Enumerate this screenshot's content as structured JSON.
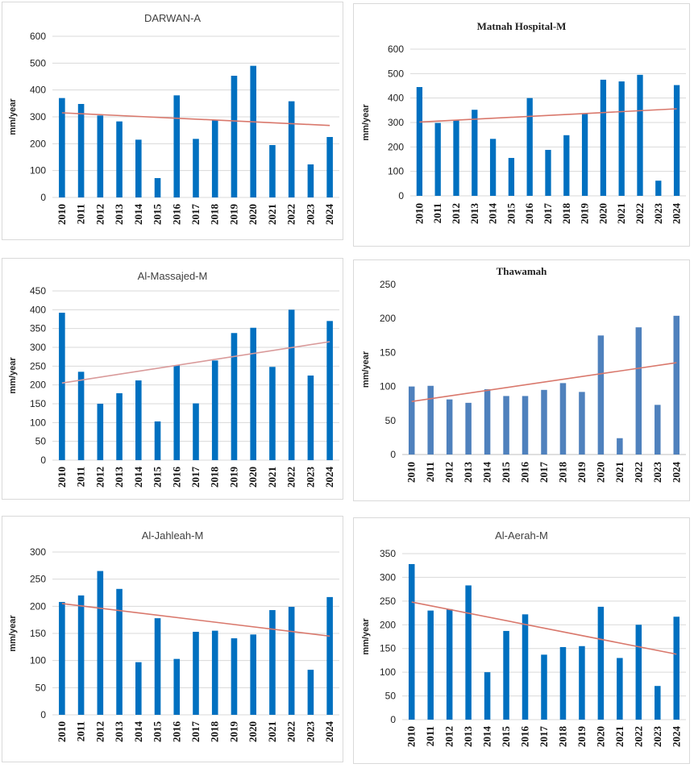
{
  "chart_data": [
    {
      "type": "bar",
      "title": "DARWAN-A",
      "ylabel": "mm/year",
      "categories": [
        "2010",
        "2011",
        "2012",
        "2013",
        "2014",
        "2015",
        "2016",
        "2017",
        "2018",
        "2019",
        "2020",
        "2021",
        "2022",
        "2023",
        "2024"
      ],
      "values": [
        370,
        348,
        305,
        283,
        215,
        72,
        380,
        218,
        288,
        453,
        490,
        195,
        358,
        123,
        225
      ],
      "ylim": [
        0,
        600
      ],
      "yticks": [
        "0",
        "100",
        "200",
        "300",
        "400",
        "500",
        "600"
      ],
      "trendline": [
        315,
        268
      ],
      "grid": true,
      "bar_color": "#0070c0",
      "trend_color": "#d9786c"
    },
    {
      "type": "bar",
      "title": "Matnah Hospital-M",
      "ylabel": "mm/year",
      "categories": [
        "2010",
        "2011",
        "2012",
        "2013",
        "2014",
        "2015",
        "2016",
        "2017",
        "2018",
        "2019",
        "2020",
        "2021",
        "2022",
        "2023",
        "2024"
      ],
      "values": [
        445,
        298,
        310,
        352,
        233,
        155,
        400,
        188,
        248,
        338,
        475,
        468,
        495,
        62,
        453
      ],
      "ylim": [
        0,
        600
      ],
      "yticks": [
        "0",
        "100",
        "200",
        "300",
        "400",
        "500",
        "600"
      ],
      "trendline": [
        302,
        356
      ],
      "grid": true,
      "bar_color": "#0070c0",
      "trend_color": "#d9786c"
    },
    {
      "type": "bar",
      "title": "Al-Massajed-M",
      "ylabel": "mm/year",
      "categories": [
        "2010",
        "2011",
        "2012",
        "2013",
        "2014",
        "2015",
        "2016",
        "2017",
        "2018",
        "2019",
        "2020",
        "2021",
        "2022",
        "2023",
        "2024"
      ],
      "values": [
        392,
        235,
        150,
        178,
        212,
        103,
        252,
        151,
        265,
        338,
        352,
        248,
        400,
        225,
        370
      ],
      "ylim": [
        0,
        450
      ],
      "yticks": [
        "0",
        "50",
        "100",
        "150",
        "200",
        "250",
        "300",
        "350",
        "400",
        "450"
      ],
      "trendline": [
        205,
        315
      ],
      "grid": true,
      "bar_color": "#0070c0",
      "trend_color": "#d99a9a"
    },
    {
      "type": "bar",
      "title": "Thawamah",
      "ylabel": "mm/year",
      "categories": [
        "2010",
        "2011",
        "2012",
        "2013",
        "2014",
        "2015",
        "2016",
        "2017",
        "2018",
        "2019",
        "2020",
        "2021",
        "2022",
        "2023",
        "2024"
      ],
      "values": [
        100,
        101,
        81,
        76,
        96,
        86,
        86,
        95,
        105,
        92,
        175,
        24,
        187,
        73,
        204
      ],
      "ylim": [
        0,
        250
      ],
      "yticks": [
        "0",
        "50",
        "100",
        "150",
        "200",
        "250"
      ],
      "trendline": [
        78,
        135
      ],
      "grid": false,
      "bar_color": "#4f81bd",
      "trend_color": "#d9786c"
    },
    {
      "type": "bar",
      "title": "Al-Jahleah-M",
      "ylabel": "mm/year",
      "categories": [
        "2010",
        "2011",
        "2012",
        "2013",
        "2014",
        "2015",
        "2016",
        "2017",
        "2018",
        "2019",
        "2020",
        "2021",
        "2022",
        "2023",
        "2024"
      ],
      "values": [
        208,
        220,
        265,
        232,
        97,
        178,
        103,
        153,
        155,
        141,
        148,
        193,
        199,
        83,
        217
      ],
      "ylim": [
        0,
        300
      ],
      "yticks": [
        "0",
        "50",
        "100",
        "150",
        "200",
        "250",
        "300"
      ],
      "trendline": [
        205,
        145
      ],
      "grid": true,
      "bar_color": "#0070c0",
      "trend_color": "#d9786c"
    },
    {
      "type": "bar",
      "title": "Al-Aerah-M",
      "ylabel": "mm/year",
      "categories": [
        "2010",
        "2011",
        "2012",
        "2013",
        "2014",
        "2015",
        "2016",
        "2017",
        "2018",
        "2019",
        "2020",
        "2021",
        "2022",
        "2023",
        "2024"
      ],
      "values": [
        328,
        230,
        233,
        283,
        100,
        187,
        222,
        137,
        153,
        155,
        238,
        130,
        200,
        71,
        217
      ],
      "ylim": [
        0,
        350
      ],
      "yticks": [
        "0",
        "50",
        "100",
        "150",
        "200",
        "250",
        "300",
        "350"
      ],
      "trendline": [
        248,
        138
      ],
      "grid": true,
      "bar_color": "#0070c0",
      "trend_color": "#d9786c"
    }
  ]
}
